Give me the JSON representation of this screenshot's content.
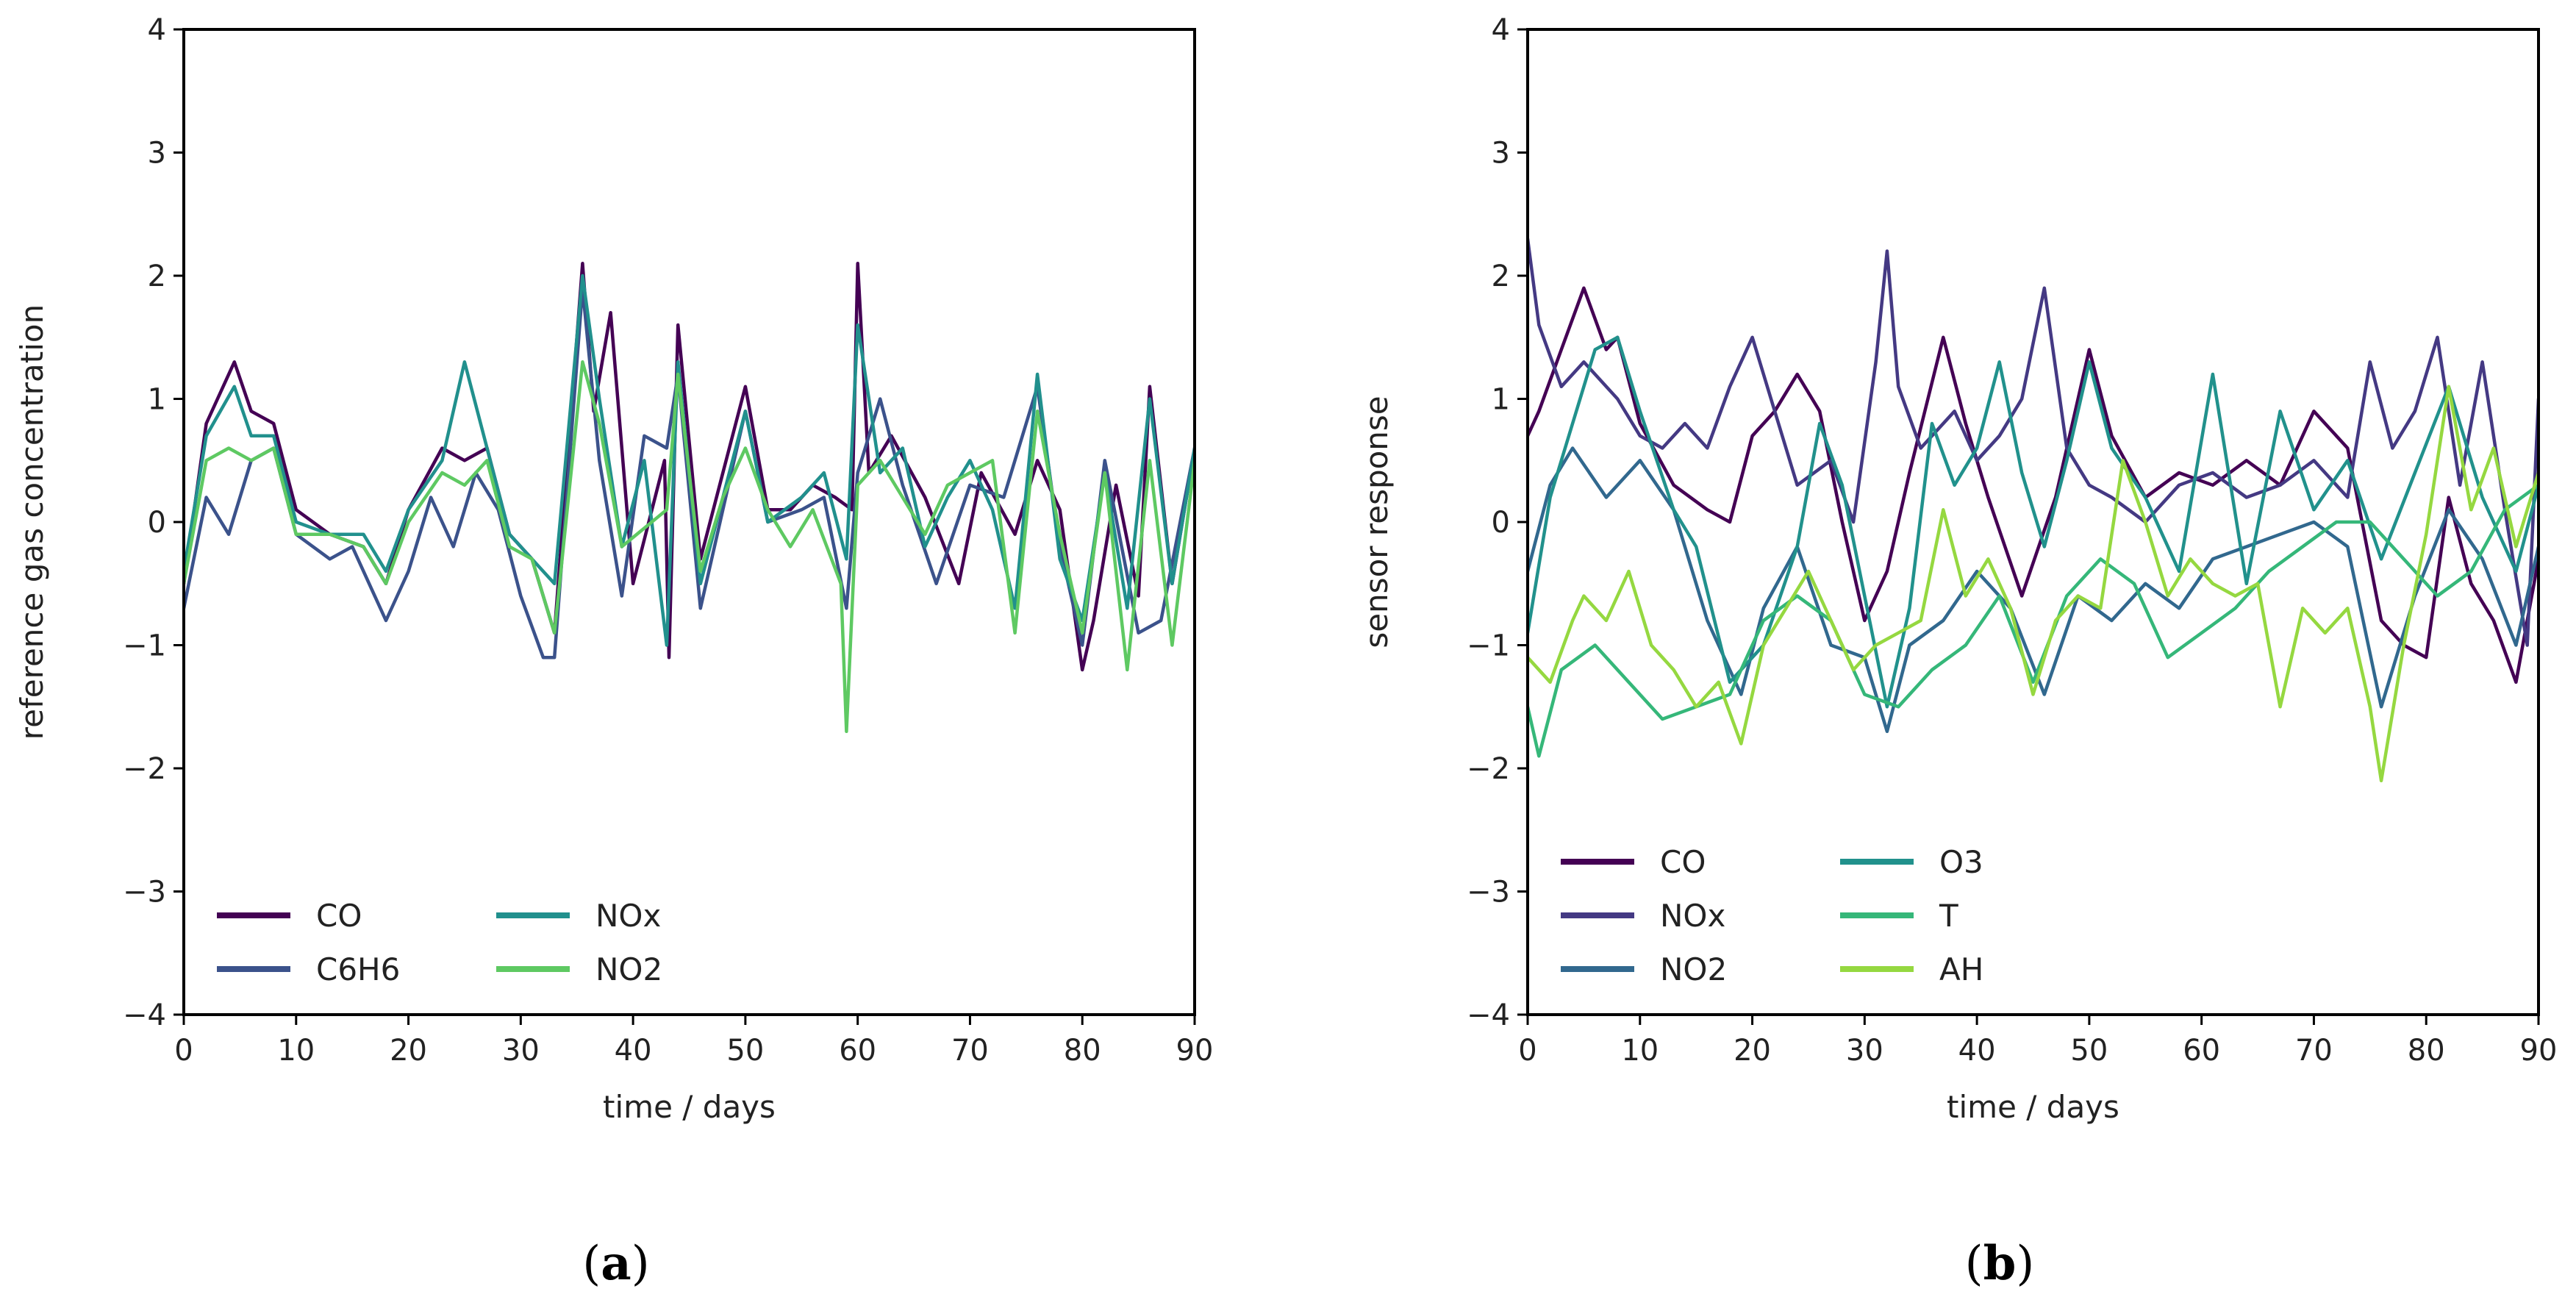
{
  "chart_data": [
    {
      "type": "line",
      "caption_letter": "a",
      "xlabel": "time / days",
      "ylabel": "reference gas concentration",
      "xlim": [
        0,
        90
      ],
      "ylim": [
        -4,
        4
      ],
      "xticks": [
        0,
        10,
        20,
        30,
        40,
        50,
        60,
        70,
        80,
        90
      ],
      "yticks": [
        4,
        3,
        2,
        1,
        0,
        -1,
        -2,
        -3,
        -4
      ],
      "ytick_labels": [
        "4",
        "3",
        "2",
        "1",
        "0",
        "−1",
        "−2",
        "−3",
        "−4"
      ],
      "legend_location": "lower-left",
      "legend_columns": 2,
      "series": [
        {
          "name": "CO",
          "color": "#440154",
          "x": [
            0,
            2,
            4.5,
            6,
            8,
            10,
            13,
            16,
            18,
            20,
            23,
            25,
            27,
            29,
            31,
            33,
            35.5,
            36.5,
            38,
            40,
            42.8,
            43.2,
            44,
            46,
            48,
            50,
            52,
            54,
            56,
            58,
            59.5,
            60,
            61,
            63,
            66,
            69,
            71,
            74,
            76,
            78,
            80,
            81,
            83,
            85,
            86,
            88,
            90
          ],
          "y": [
            -0.5,
            0.8,
            1.3,
            0.9,
            0.8,
            0.1,
            -0.1,
            -0.2,
            -0.5,
            0.1,
            0.6,
            0.5,
            0.6,
            -0.1,
            -0.3,
            -0.9,
            2.1,
            0.9,
            1.7,
            -0.5,
            0.5,
            -1.1,
            1.6,
            -0.3,
            0.4,
            1.1,
            0.1,
            0.1,
            0.3,
            0.2,
            0.1,
            2.1,
            0.4,
            0.7,
            0.2,
            -0.5,
            0.4,
            -0.1,
            0.5,
            0.1,
            -1.2,
            -0.8,
            0.3,
            -0.6,
            1.1,
            -0.5,
            0.6
          ]
        },
        {
          "name": "C6H6",
          "color": "#3b528b",
          "x": [
            0,
            2,
            4,
            6,
            8,
            10,
            13,
            15,
            18,
            20,
            22,
            24,
            26,
            28,
            30,
            32,
            33,
            35.5,
            37,
            39,
            41,
            43,
            44,
            46,
            48,
            50,
            52,
            55,
            57,
            59,
            60,
            62,
            64,
            67,
            70,
            73,
            76,
            78,
            80,
            82,
            85,
            87,
            90
          ],
          "y": [
            -0.7,
            0.2,
            -0.1,
            0.5,
            0.6,
            -0.1,
            -0.3,
            -0.2,
            -0.8,
            -0.4,
            0.2,
            -0.2,
            0.4,
            0.1,
            -0.6,
            -1.1,
            -1.1,
            1.9,
            0.5,
            -0.6,
            0.7,
            0.6,
            1.2,
            -0.7,
            0.1,
            0.9,
            0.0,
            0.1,
            0.2,
            -0.7,
            0.4,
            1.0,
            0.3,
            -0.5,
            0.3,
            0.2,
            1.1,
            -0.2,
            -1.0,
            0.5,
            -0.9,
            -0.8,
            0.6
          ]
        },
        {
          "name": "NOx",
          "color": "#21908d",
          "x": [
            0,
            2,
            4.5,
            6,
            8,
            10,
            13,
            16,
            18,
            20,
            23,
            25,
            27,
            29,
            31,
            33,
            35.5,
            37,
            39,
            41,
            43,
            44,
            46,
            48,
            50,
            52,
            55,
            57,
            59,
            60,
            62,
            64,
            66,
            68,
            70,
            72,
            74,
            76,
            78,
            80,
            82,
            84,
            86,
            88,
            90
          ],
          "y": [
            -0.4,
            0.7,
            1.1,
            0.7,
            0.7,
            0.0,
            -0.1,
            -0.1,
            -0.4,
            0.1,
            0.5,
            1.3,
            0.6,
            -0.1,
            -0.3,
            -0.5,
            2.0,
            1.0,
            -0.2,
            0.5,
            -1.0,
            1.3,
            -0.5,
            0.2,
            0.9,
            0.0,
            0.2,
            0.4,
            -0.3,
            1.6,
            0.4,
            0.6,
            -0.2,
            0.2,
            0.5,
            0.1,
            -0.7,
            1.2,
            -0.3,
            -0.8,
            0.4,
            -0.7,
            1.0,
            -0.5,
            0.6
          ]
        },
        {
          "name": "NO2",
          "color": "#5ec962",
          "x": [
            0,
            2,
            4,
            6,
            8,
            10,
            13,
            16,
            18,
            20,
            23,
            25,
            27,
            29,
            31,
            33,
            35.5,
            37,
            39,
            43,
            44,
            46,
            48,
            50,
            52,
            54,
            56,
            58.5,
            59,
            60,
            62,
            64,
            66,
            68,
            70,
            72,
            74,
            76,
            78,
            80,
            82,
            84,
            86,
            88,
            90
          ],
          "y": [
            -0.5,
            0.5,
            0.6,
            0.5,
            0.6,
            -0.1,
            -0.1,
            -0.2,
            -0.5,
            0.0,
            0.4,
            0.3,
            0.5,
            -0.2,
            -0.3,
            -0.9,
            1.3,
            0.8,
            -0.2,
            0.1,
            1.2,
            -0.4,
            0.2,
            0.6,
            0.1,
            -0.2,
            0.1,
            -0.5,
            -1.7,
            0.3,
            0.5,
            0.2,
            -0.1,
            0.3,
            0.4,
            0.5,
            -0.9,
            0.9,
            -0.1,
            -0.9,
            0.4,
            -1.2,
            0.5,
            -1.0,
            0.5
          ]
        }
      ]
    },
    {
      "type": "line",
      "caption_letter": "b",
      "xlabel": "time / days",
      "ylabel": "sensor response",
      "xlim": [
        0,
        90
      ],
      "ylim": [
        -4,
        4
      ],
      "xticks": [
        0,
        10,
        20,
        30,
        40,
        50,
        60,
        70,
        80,
        90
      ],
      "yticks": [
        4,
        3,
        2,
        1,
        0,
        -1,
        -2,
        -3,
        -4
      ],
      "ytick_labels": [
        "4",
        "3",
        "2",
        "1",
        "0",
        "−1",
        "−2",
        "−3",
        "−4"
      ],
      "legend_location": "lower-left",
      "legend_columns": 2,
      "series": [
        {
          "name": "CO",
          "color": "#440154",
          "x": [
            0,
            1,
            3,
            5,
            7,
            8,
            10,
            13,
            16,
            18,
            20,
            22,
            24,
            26,
            28,
            30,
            32,
            34,
            37,
            39,
            41,
            44,
            47,
            50,
            52,
            55,
            58,
            61,
            64,
            67,
            70,
            73,
            76,
            78,
            80,
            82,
            84,
            86,
            88,
            90
          ],
          "y": [
            0.7,
            0.9,
            1.4,
            1.9,
            1.4,
            1.5,
            0.8,
            0.3,
            0.1,
            0.0,
            0.7,
            0.9,
            1.2,
            0.9,
            0.0,
            -0.8,
            -0.4,
            0.4,
            1.5,
            0.8,
            0.2,
            -0.6,
            0.2,
            1.4,
            0.7,
            0.2,
            0.4,
            0.3,
            0.5,
            0.3,
            0.9,
            0.6,
            -0.8,
            -1.0,
            -1.1,
            0.2,
            -0.5,
            -0.8,
            -1.3,
            -0.3
          ]
        },
        {
          "name": "NOx",
          "color": "#443983",
          "x": [
            0,
            1,
            3,
            5,
            8,
            10,
            12,
            14,
            16,
            18,
            20,
            22,
            24,
            27,
            29,
            31,
            32,
            33,
            35,
            38,
            40,
            42,
            44,
            46,
            48,
            50,
            52,
            55,
            58,
            61,
            64,
            67,
            70,
            73,
            75,
            77,
            79,
            81,
            83,
            85,
            87,
            89,
            90
          ],
          "y": [
            2.3,
            1.6,
            1.1,
            1.3,
            1.0,
            0.7,
            0.6,
            0.8,
            0.6,
            1.1,
            1.5,
            0.9,
            0.3,
            0.5,
            0.0,
            1.3,
            2.2,
            1.1,
            0.6,
            0.9,
            0.5,
            0.7,
            1.0,
            1.9,
            0.6,
            0.3,
            0.2,
            0.0,
            0.3,
            0.4,
            0.2,
            0.3,
            0.5,
            0.2,
            1.3,
            0.6,
            0.9,
            1.5,
            0.3,
            1.3,
            0.1,
            -1.0,
            1.0
          ]
        },
        {
          "name": "NO2",
          "color": "#31688e",
          "x": [
            0,
            2,
            4,
            7,
            10,
            13,
            16,
            19,
            21,
            24,
            27,
            30,
            32,
            34,
            37,
            40,
            43,
            46,
            49,
            52,
            55,
            58,
            61,
            64,
            67,
            70,
            73,
            76,
            79,
            82,
            85,
            88,
            90
          ],
          "y": [
            -0.4,
            0.3,
            0.6,
            0.2,
            0.5,
            0.1,
            -0.8,
            -1.4,
            -0.7,
            -0.2,
            -1.0,
            -1.1,
            -1.7,
            -1.0,
            -0.8,
            -0.4,
            -0.7,
            -1.4,
            -0.6,
            -0.8,
            -0.5,
            -0.7,
            -0.3,
            -0.2,
            -0.1,
            0.0,
            -0.2,
            -1.5,
            -0.6,
            0.1,
            -0.3,
            -1.0,
            -0.2
          ]
        },
        {
          "name": "O3",
          "color": "#21918c",
          "x": [
            0,
            2,
            4,
            6,
            8,
            10,
            13,
            15,
            18,
            21,
            24,
            26,
            28,
            30,
            32,
            34,
            36,
            38,
            40,
            42,
            44,
            46,
            48,
            50,
            52,
            55,
            58,
            61,
            64,
            67,
            70,
            73,
            76,
            79,
            82,
            85,
            88,
            90
          ],
          "y": [
            -0.9,
            0.2,
            0.8,
            1.4,
            1.5,
            0.9,
            0.1,
            -0.2,
            -1.3,
            -1.0,
            -0.2,
            0.8,
            0.3,
            -0.6,
            -1.5,
            -0.7,
            0.8,
            0.3,
            0.6,
            1.3,
            0.4,
            -0.2,
            0.5,
            1.3,
            0.6,
            0.2,
            -0.4,
            1.2,
            -0.5,
            0.9,
            0.1,
            0.5,
            -0.3,
            0.4,
            1.1,
            0.2,
            -0.4,
            0.3
          ]
        },
        {
          "name": "T",
          "color": "#35b779",
          "x": [
            0,
            1,
            3,
            6,
            9,
            12,
            15,
            18,
            21,
            24,
            27,
            30,
            33,
            36,
            39,
            42,
            45,
            48,
            51,
            54,
            57,
            60,
            63,
            66,
            69,
            72,
            75,
            78,
            81,
            84,
            87,
            90
          ],
          "y": [
            -1.5,
            -1.9,
            -1.2,
            -1.0,
            -1.3,
            -1.6,
            -1.5,
            -1.4,
            -0.8,
            -0.6,
            -0.8,
            -1.4,
            -1.5,
            -1.2,
            -1.0,
            -0.6,
            -1.3,
            -0.6,
            -0.3,
            -0.5,
            -1.1,
            -0.9,
            -0.7,
            -0.4,
            -0.2,
            0.0,
            0.0,
            -0.3,
            -0.6,
            -0.4,
            0.1,
            0.3
          ]
        },
        {
          "name": "AH",
          "color": "#95d840",
          "x": [
            0,
            2,
            4,
            5,
            7,
            9,
            11,
            13,
            15,
            17,
            19,
            21,
            23,
            25,
            27,
            29,
            31,
            33,
            35,
            37,
            39,
            41,
            43,
            45,
            47,
            49,
            51,
            53,
            55,
            57,
            59,
            61,
            63,
            65,
            67,
            69,
            71,
            73,
            75,
            76,
            78,
            80,
            82,
            84,
            86,
            88,
            90
          ],
          "y": [
            -1.1,
            -1.3,
            -0.8,
            -0.6,
            -0.8,
            -0.4,
            -1.0,
            -1.2,
            -1.5,
            -1.3,
            -1.8,
            -1.0,
            -0.7,
            -0.4,
            -0.8,
            -1.2,
            -1.0,
            -0.9,
            -0.8,
            0.1,
            -0.6,
            -0.3,
            -0.7,
            -1.4,
            -0.8,
            -0.6,
            -0.7,
            0.5,
            0.0,
            -0.6,
            -0.3,
            -0.5,
            -0.6,
            -0.5,
            -1.5,
            -0.7,
            -0.9,
            -0.7,
            -1.5,
            -2.1,
            -1.0,
            -0.1,
            1.1,
            0.1,
            0.6,
            -0.2,
            0.4
          ]
        }
      ]
    }
  ]
}
